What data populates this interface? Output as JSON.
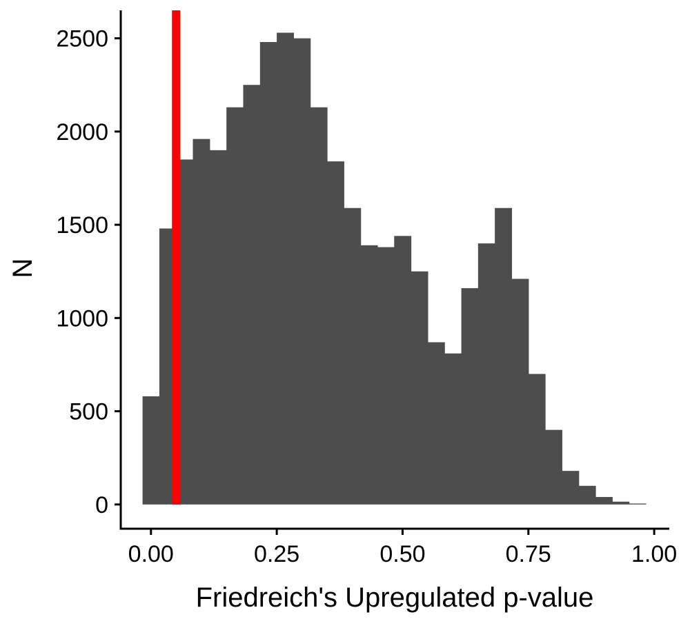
{
  "chart_data": {
    "type": "bar",
    "subtype": "histogram",
    "xlabel": "Friedreich's Upregulated p-value",
    "ylabel": "N",
    "xlim": [
      -0.06,
      1.03
    ],
    "ylim": [
      -130,
      2650
    ],
    "x_ticks": [
      0.0,
      0.25,
      0.5,
      0.75,
      1.0
    ],
    "x_tick_labels": [
      "0.00",
      "0.25",
      "0.50",
      "0.75",
      "1.00"
    ],
    "y_ticks": [
      0,
      500,
      1000,
      1500,
      2000,
      2500
    ],
    "y_tick_labels": [
      "0",
      "500",
      "1000",
      "1500",
      "2000",
      "2500"
    ],
    "bin_width": 0.0333,
    "bin_starts": [
      -0.0167,
      0.0167,
      0.05,
      0.0833,
      0.1167,
      0.15,
      0.1833,
      0.2167,
      0.25,
      0.2833,
      0.3167,
      0.35,
      0.3833,
      0.4167,
      0.45,
      0.4833,
      0.5167,
      0.55,
      0.5833,
      0.6167,
      0.65,
      0.6833,
      0.7167,
      0.75,
      0.7833,
      0.8167,
      0.85,
      0.8833,
      0.9167,
      0.95
    ],
    "values": [
      580,
      1480,
      1850,
      1960,
      1900,
      2130,
      2250,
      2480,
      2530,
      2500,
      2130,
      1840,
      1590,
      1390,
      1380,
      1440,
      1250,
      870,
      810,
      1160,
      1400,
      1590,
      1210,
      700,
      400,
      180,
      100,
      40,
      15,
      5
    ],
    "bar_color": "#4d4d4d",
    "reference_line": {
      "x": 0.05,
      "color": "#ff0000"
    },
    "grid": false,
    "legend": false
  }
}
